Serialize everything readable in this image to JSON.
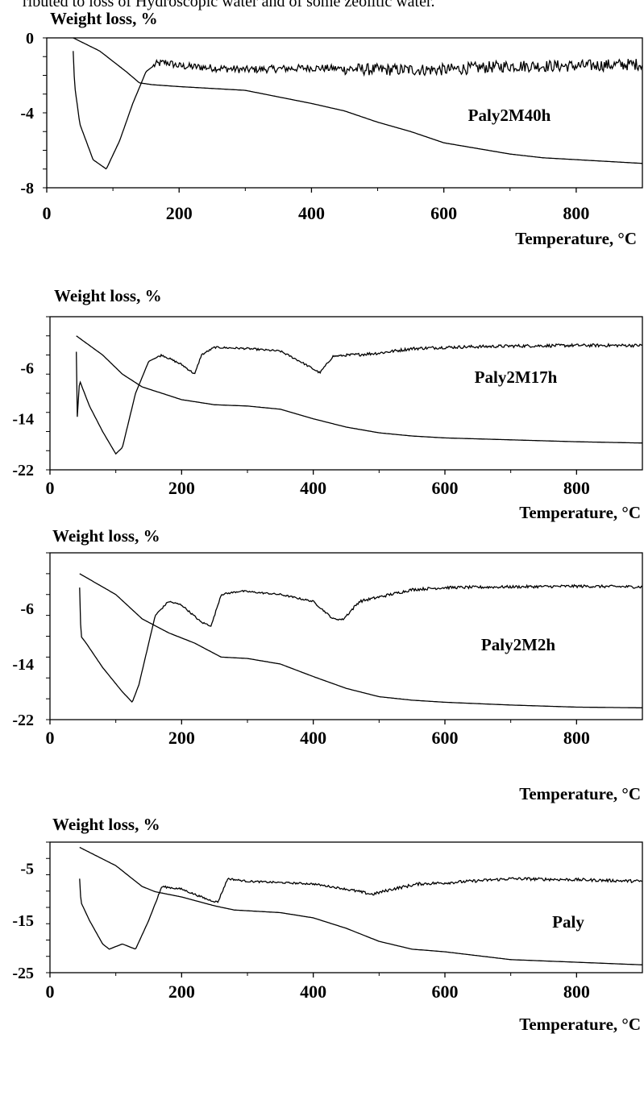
{
  "caption": "ributed to loss of Hydroscopic water and of some zeolitic water.",
  "chart_data": [
    {
      "type": "line",
      "title": "",
      "ylabel": "Weight loss, %",
      "xlabel": "Temperature, °C",
      "sample_label": "Paly2M40h",
      "xlim": [
        0,
        900
      ],
      "ylim": [
        -8,
        0
      ],
      "xticks": [
        0,
        200,
        400,
        600,
        800
      ],
      "yticks": [
        0,
        -4,
        -8
      ],
      "series": [
        {
          "x": [
            40,
            80,
            120,
            140,
            160,
            200,
            300,
            400,
            450,
            500,
            550,
            600,
            650,
            700,
            750,
            800,
            850,
            900
          ],
          "y": [
            0,
            -0.7,
            -1.8,
            -2.4,
            -2.5,
            -2.6,
            -2.8,
            -3.5,
            -3.9,
            -4.5,
            -5.0,
            -5.6,
            -5.9,
            -6.2,
            -6.4,
            -6.5,
            -6.6,
            -6.7
          ]
        },
        {
          "x": [
            40,
            42,
            50,
            70,
            90,
            110,
            130,
            150,
            165,
            180,
            200,
            300,
            400,
            500,
            600,
            700,
            800,
            900
          ],
          "y": [
            -0.7,
            -2.5,
            -4.6,
            -6.5,
            -7.0,
            -5.5,
            -3.5,
            -1.8,
            -1.4,
            -1.3,
            -1.5,
            -1.7,
            -1.6,
            -1.7,
            -1.7,
            -1.5,
            -1.5,
            -1.4
          ],
          "noise": 0.4
        }
      ]
    },
    {
      "type": "line",
      "title": "",
      "ylabel": "Weight loss, %",
      "xlabel": "Temperature, °C",
      "sample_label": "Paly2M17h",
      "xlim": [
        0,
        900
      ],
      "ylim": [
        -22,
        2
      ],
      "xticks": [
        0,
        200,
        400,
        600,
        800
      ],
      "yticks": [
        -6,
        -14,
        -22
      ],
      "series": [
        {
          "x": [
            40,
            80,
            110,
            140,
            170,
            200,
            250,
            300,
            350,
            400,
            450,
            500,
            550,
            600,
            700,
            800,
            900
          ],
          "y": [
            -1.0,
            -4.0,
            -7.0,
            -9.0,
            -10.0,
            -11.0,
            -11.8,
            -12.0,
            -12.5,
            -14.0,
            -15.3,
            -16.2,
            -16.7,
            -17.0,
            -17.3,
            -17.6,
            -17.8
          ]
        },
        {
          "x": [
            40,
            41,
            45,
            60,
            80,
            100,
            110,
            130,
            150,
            170,
            200,
            220,
            230,
            250,
            300,
            350,
            380,
            410,
            430,
            460,
            500,
            550,
            600,
            700,
            800,
            900
          ],
          "y": [
            -3.5,
            -14.5,
            -8.0,
            -12.0,
            -16.0,
            -19.5,
            -18.5,
            -10.0,
            -5.0,
            -4.0,
            -5.5,
            -7.0,
            -4.0,
            -2.8,
            -3.0,
            -3.4,
            -5.0,
            -6.8,
            -4.2,
            -4.0,
            -3.7,
            -3.0,
            -2.8,
            -2.6,
            -2.5,
            -2.5
          ],
          "noise": 0.3
        }
      ]
    },
    {
      "type": "line",
      "title": "",
      "ylabel": "Weight loss, %",
      "xlabel": "Temperature, °C",
      "sample_label": "Paly2M2h",
      "xlim": [
        0,
        900
      ],
      "ylim": [
        -22,
        2
      ],
      "xticks": [
        0,
        200,
        400,
        600,
        800
      ],
      "yticks": [
        -6,
        -14,
        -22
      ],
      "series": [
        {
          "x": [
            45,
            100,
            140,
            180,
            220,
            260,
            300,
            350,
            400,
            450,
            500,
            550,
            600,
            700,
            800,
            900
          ],
          "y": [
            -1.0,
            -4.0,
            -7.5,
            -9.5,
            -11.0,
            -13.0,
            -13.2,
            -14.0,
            -15.8,
            -17.5,
            -18.7,
            -19.2,
            -19.5,
            -19.9,
            -20.2,
            -20.3
          ]
        },
        {
          "x": [
            45,
            47,
            55,
            80,
            110,
            125,
            135,
            160,
            180,
            200,
            230,
            245,
            260,
            290,
            350,
            400,
            430,
            445,
            470,
            550,
            600,
            700,
            800,
            900
          ],
          "y": [
            -3.0,
            -10.0,
            -11.0,
            -14.5,
            -18.0,
            -19.5,
            -17.0,
            -7.0,
            -5.0,
            -5.5,
            -8.0,
            -8.5,
            -4.0,
            -3.5,
            -4.0,
            -5.0,
            -7.5,
            -7.6,
            -5.0,
            -3.3,
            -3.0,
            -2.9,
            -2.8,
            -2.9
          ],
          "noise": 0.25
        }
      ]
    },
    {
      "type": "line",
      "title": "",
      "ylabel": "Weight loss, %",
      "xlabel": "Temperature, °C",
      "sample_label": "Paly",
      "xlim": [
        0,
        900
      ],
      "ylim": [
        -25,
        0
      ],
      "xticks": [
        0,
        200,
        400,
        600,
        800
      ],
      "yticks": [
        -5,
        -15,
        -25
      ],
      "series": [
        {
          "x": [
            45,
            100,
            140,
            160,
            200,
            250,
            280,
            350,
            400,
            450,
            500,
            550,
            600,
            700,
            800,
            900
          ],
          "y": [
            -1.0,
            -4.5,
            -8.5,
            -9.5,
            -10.5,
            -12.2,
            -13.0,
            -13.5,
            -14.5,
            -16.5,
            -19.0,
            -20.5,
            -21.0,
            -22.5,
            -23.0,
            -23.5
          ]
        },
        {
          "x": [
            45,
            47,
            60,
            80,
            90,
            110,
            130,
            150,
            170,
            200,
            240,
            255,
            270,
            300,
            400,
            450,
            490,
            520,
            560,
            600,
            700,
            800,
            900
          ],
          "y": [
            -7.0,
            -11.5,
            -15.0,
            -19.5,
            -20.5,
            -19.5,
            -20.5,
            -15.0,
            -8.5,
            -9.0,
            -11.0,
            -11.5,
            -7.0,
            -7.5,
            -8.0,
            -9.0,
            -10.0,
            -9.0,
            -8.0,
            -7.8,
            -7.0,
            -7.2,
            -7.5
          ],
          "noise": 0.35
        }
      ]
    }
  ]
}
